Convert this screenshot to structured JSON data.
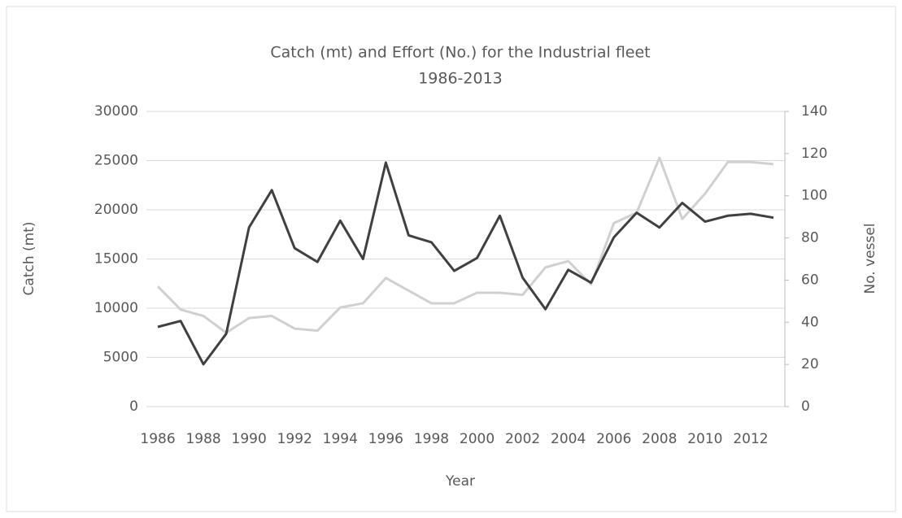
{
  "chart_data": {
    "type": "line",
    "title": "Catch (mt) and Effort (No.) for the Industrial fleet",
    "subtitle": "1986-2013",
    "x_label": "Year",
    "y_label": "Catch (mt)",
    "y2_label": "No. vessel",
    "x": [
      1986,
      1987,
      1988,
      1989,
      1990,
      1991,
      1992,
      1993,
      1994,
      1995,
      1996,
      1997,
      1998,
      1999,
      2000,
      2001,
      2002,
      2003,
      2004,
      2005,
      2006,
      2007,
      2008,
      2009,
      2010,
      2011,
      2012,
      2013
    ],
    "xlim": [
      1985.5,
      2013.5
    ],
    "xticks": [
      1986,
      1988,
      1990,
      1992,
      1994,
      1996,
      1998,
      2000,
      2002,
      2004,
      2006,
      2008,
      2010,
      2012
    ],
    "ylim": [
      0,
      30000
    ],
    "yticks": [
      0,
      5000,
      10000,
      15000,
      20000,
      25000,
      30000
    ],
    "y2lim": [
      0,
      140
    ],
    "y2ticks": [
      0,
      20,
      40,
      60,
      80,
      100,
      120,
      140
    ],
    "grid": true,
    "series": [
      {
        "color": "#d0d0d0",
        "axis": "y2",
        "values": [
          57,
          46,
          43,
          35,
          42,
          43,
          37,
          36,
          47,
          49,
          61,
          55,
          49,
          49,
          54,
          54,
          53,
          66,
          69,
          58,
          87,
          92,
          118,
          89,
          101,
          116,
          116,
          115
        ]
      },
      {
        "color": "#404040",
        "values": [
          8100,
          8700,
          4300,
          7400,
          18200,
          22000,
          16100,
          14700,
          18900,
          15000,
          24800,
          17400,
          16700,
          13800,
          15100,
          19400,
          13100,
          9900,
          13900,
          12600,
          17200,
          19700,
          18200,
          20700,
          18800,
          19400,
          19600,
          19200
        ]
      }
    ]
  }
}
